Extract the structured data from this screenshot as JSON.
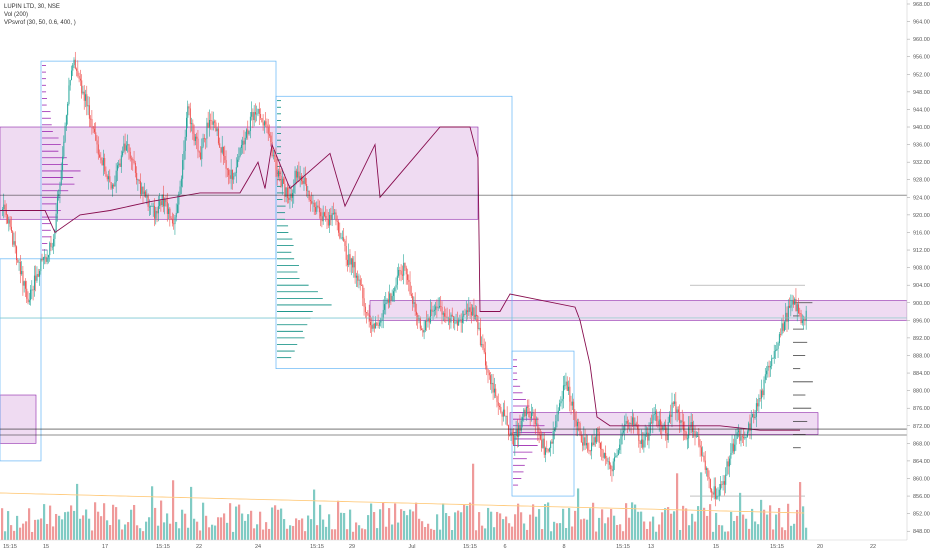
{
  "legend": {
    "symbol": "LUPIN LTD, 30, NSE",
    "volume": "Vol (200)",
    "indicator": "VPsvrof (30, 50, 0.6, 400, )"
  },
  "colors": {
    "up": "#26a69a",
    "down": "#ef5350",
    "zone_fill": "#e1bee7",
    "zone_border": "#8e24aa",
    "poc_line": "#880e4f",
    "box_line": "#64b5f6",
    "profile": "#9c27b0",
    "profile_green": "#00897b",
    "vol_ma": "#ffcc80"
  },
  "chart_data": {
    "type": "candlestick",
    "title": "LUPIN LTD, 30, NSE",
    "ylim": [
      846,
      968
    ],
    "y_ticks": [
      "848.00",
      "852.00",
      "856.00",
      "860.00",
      "864.00",
      "868.00",
      "872.00",
      "876.00",
      "880.00",
      "884.00",
      "888.00",
      "892.00",
      "896.00",
      "900.00",
      "904.00",
      "908.00",
      "912.00",
      "916.00",
      "920.00",
      "924.00",
      "928.00",
      "932.00",
      "936.00",
      "940.00",
      "944.00",
      "948.00",
      "952.00",
      "956.00",
      "960.00",
      "964.00",
      "968.00"
    ],
    "x_tick_labels": [
      "15:15",
      "15",
      "17",
      "15:15",
      "22",
      "24",
      "15:15",
      "29",
      "Jul",
      "15:15",
      "6",
      "8",
      "15:15",
      "13",
      "15",
      "15:15",
      "20",
      "22"
    ],
    "price_tags": [
      {
        "label": "924.50",
        "value": 924.5,
        "style": "dark"
      },
      {
        "label": "896.55",
        "value": 896.55,
        "style": "accent"
      },
      {
        "label": "871.25",
        "value": 871.25,
        "style": "dark"
      },
      {
        "label": "869.90",
        "value": 869.9,
        "style": "dark"
      }
    ],
    "zones": [
      {
        "x_from": 0,
        "x_to": 478,
        "top": 940,
        "bottom": 919
      },
      {
        "x_from": 370,
        "x_to": 907,
        "top": 900.5,
        "bottom": 896
      },
      {
        "x_from": 510,
        "x_to": 818,
        "top": 875,
        "bottom": 870
      },
      {
        "x_from": 0,
        "x_to": 36,
        "top": 879,
        "bottom": 868
      }
    ],
    "sessions": [
      {
        "open": 922,
        "path": [
          922,
          918,
          912,
          906,
          900,
          905,
          909,
          911,
          915
        ]
      },
      {
        "open": 915,
        "path": [
          915,
          928,
          944,
          955,
          950,
          946,
          940,
          935,
          931,
          926
        ]
      },
      {
        "open": 926,
        "path": [
          926,
          930,
          936,
          934,
          928,
          925,
          922,
          920,
          924,
          921,
          918
        ]
      },
      {
        "open": 918,
        "path": [
          918,
          928,
          944,
          938,
          934,
          940,
          942,
          936,
          932,
          928
        ]
      },
      {
        "open": 928,
        "path": [
          928,
          934,
          938,
          942,
          945,
          940,
          936,
          930,
          926,
          924
        ]
      },
      {
        "open": 924,
        "path": [
          924,
          930,
          928,
          924,
          922,
          920,
          918,
          921
        ]
      },
      {
        "open": 921,
        "path": [
          921,
          915,
          910,
          908,
          904,
          898,
          894,
          896,
          900,
          902,
          906,
          908,
          902,
          896,
          894
        ]
      },
      {
        "open": 894,
        "path": [
          894,
          897,
          900,
          898,
          896,
          895,
          897,
          899,
          897
        ]
      },
      {
        "open": 897,
        "path": [
          897,
          890,
          884,
          880,
          876,
          872,
          869,
          872,
          876,
          874,
          870,
          866,
          869
        ]
      },
      {
        "open": 869,
        "path": [
          869,
          876,
          882,
          878,
          872,
          868,
          866,
          870,
          866,
          862,
          864,
          870
        ]
      },
      {
        "open": 870,
        "path": [
          870,
          874,
          872,
          868,
          870,
          875,
          872,
          870,
          878,
          874,
          870,
          872
        ]
      },
      {
        "open": 872,
        "path": [
          872,
          868,
          862,
          858,
          856,
          860,
          866,
          870,
          868,
          872,
          876
        ]
      },
      {
        "open": 876,
        "path": [
          876,
          880,
          886,
          890,
          894,
          898,
          900,
          896,
          898
        ]
      }
    ],
    "volume_note": "Vol (200)"
  }
}
